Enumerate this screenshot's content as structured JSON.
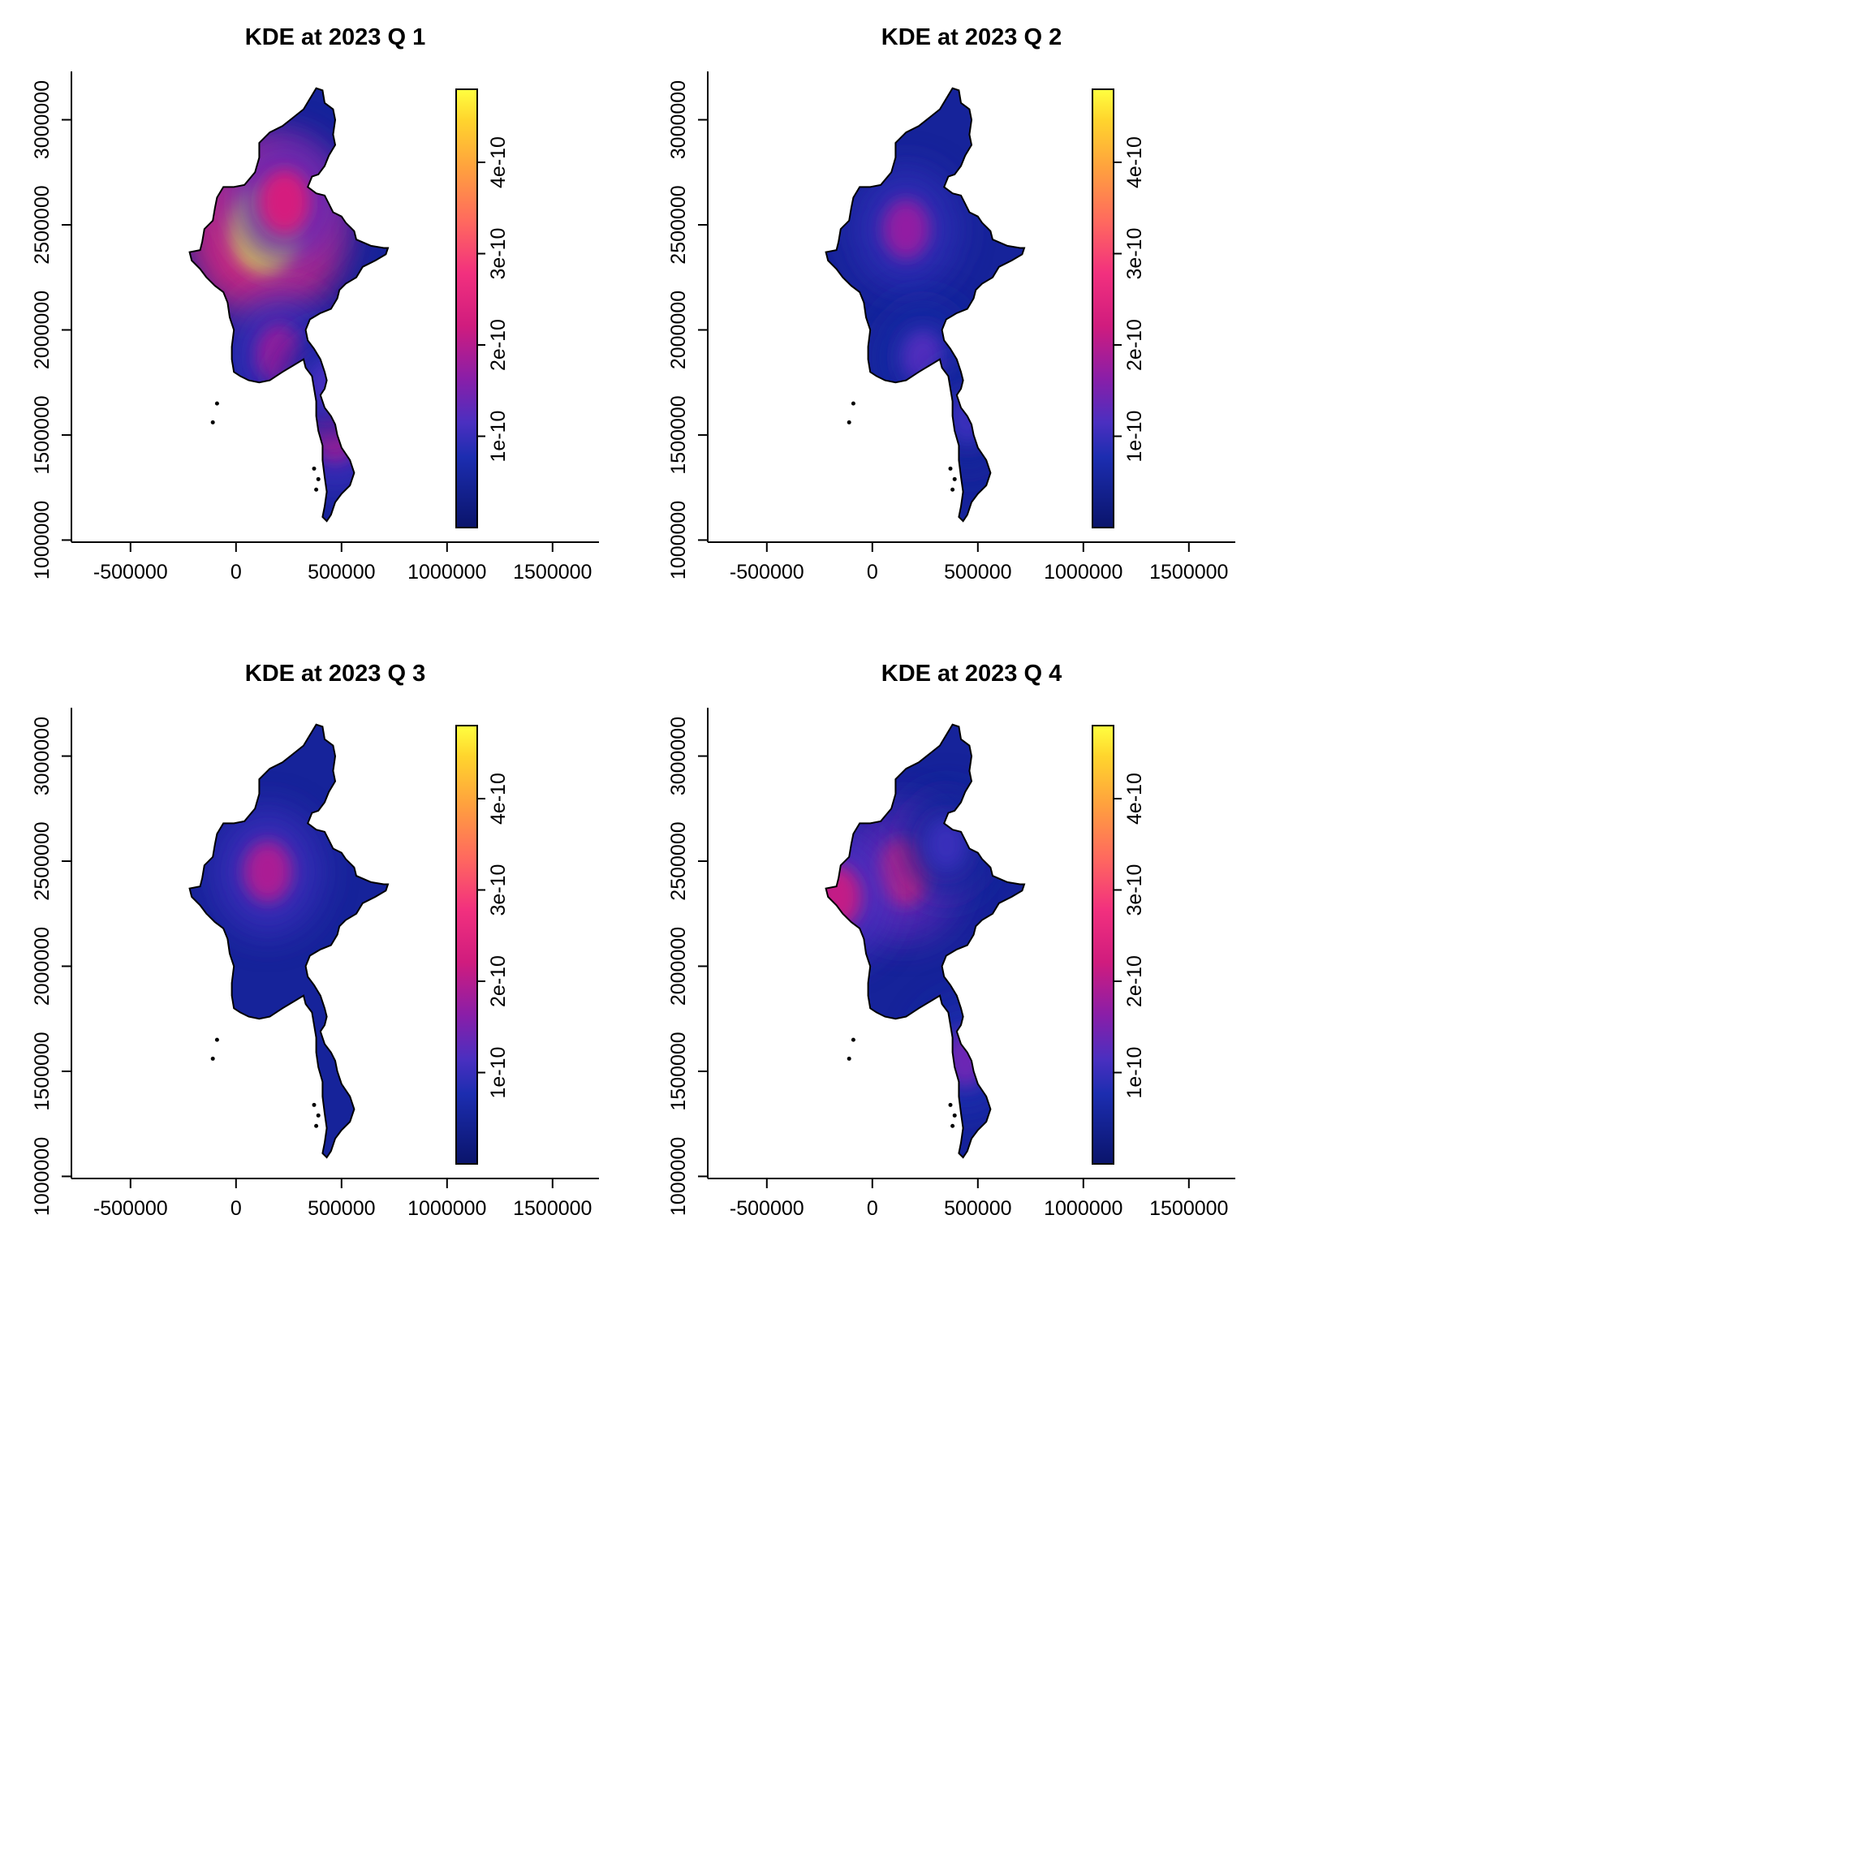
{
  "chart_data": [
    {
      "type": "heatmap",
      "title": "KDE at 2023 Q 1",
      "xlabel": "",
      "ylabel": "",
      "x_ticks": [
        "-500000",
        "0",
        "500000",
        "1000000",
        "1500000"
      ],
      "y_ticks": [
        "1000000",
        "1500000",
        "2000000",
        "2500000",
        "3000000"
      ],
      "xlim": [
        -780000,
        1720000
      ],
      "ylim": [
        990000,
        3230000
      ],
      "legend": {
        "placement": "right",
        "range": [
          0,
          4.8e-10
        ],
        "ticks": [
          "1e-10",
          "2e-10",
          "3e-10",
          "4e-10"
        ]
      },
      "hotspots": [
        {
          "x": 140000,
          "y": 2480000,
          "peak": 4.7e-10
        },
        {
          "x": 230000,
          "y": 2610000,
          "peak": 2.3e-10
        },
        {
          "x": 210000,
          "y": 1880000,
          "peak": 1.8e-10
        },
        {
          "x": 470000,
          "y": 1520000,
          "peak": 1.9e-10
        },
        {
          "x": 430000,
          "y": 1740000,
          "peak": 1.1e-10
        }
      ]
    },
    {
      "type": "heatmap",
      "title": "KDE at 2023 Q 2",
      "xlabel": "",
      "ylabel": "",
      "x_ticks": [
        "-500000",
        "0",
        "500000",
        "1000000",
        "1500000"
      ],
      "y_ticks": [
        "1000000",
        "1500000",
        "2000000",
        "2500000",
        "3000000"
      ],
      "xlim": [
        -780000,
        1720000
      ],
      "ylim": [
        990000,
        3230000
      ],
      "legend": {
        "placement": "right",
        "range": [
          0,
          4.8e-10
        ],
        "ticks": [
          "1e-10",
          "2e-10",
          "3e-10",
          "4e-10"
        ]
      },
      "hotspots": [
        {
          "x": 160000,
          "y": 2480000,
          "peak": 1.7e-10
        },
        {
          "x": 240000,
          "y": 1870000,
          "peak": 1.2e-10
        },
        {
          "x": 450000,
          "y": 1580000,
          "peak": 1e-10
        }
      ]
    },
    {
      "type": "heatmap",
      "title": "KDE at 2023 Q 3",
      "xlabel": "",
      "ylabel": "",
      "x_ticks": [
        "-500000",
        "0",
        "500000",
        "1000000",
        "1500000"
      ],
      "y_ticks": [
        "1000000",
        "1500000",
        "2000000",
        "2500000",
        "3000000"
      ],
      "xlim": [
        -780000,
        1720000
      ],
      "ylim": [
        990000,
        3230000
      ],
      "legend": {
        "placement": "right",
        "range": [
          0,
          4.8e-10
        ],
        "ticks": [
          "1e-10",
          "2e-10",
          "3e-10",
          "4e-10"
        ]
      },
      "hotspots": [
        {
          "x": 150000,
          "y": 2450000,
          "peak": 1.9e-10
        }
      ]
    },
    {
      "type": "heatmap",
      "title": "KDE at 2023 Q 4",
      "xlabel": "",
      "ylabel": "",
      "x_ticks": [
        "-500000",
        "0",
        "500000",
        "1000000",
        "1500000"
      ],
      "y_ticks": [
        "1000000",
        "1500000",
        "2000000",
        "2500000",
        "3000000"
      ],
      "xlim": [
        -780000,
        1720000
      ],
      "ylim": [
        990000,
        3230000
      ],
      "legend": {
        "placement": "right",
        "range": [
          0,
          4.8e-10
        ],
        "ticks": [
          "1e-10",
          "2e-10",
          "3e-10",
          "4e-10"
        ]
      },
      "hotspots": [
        {
          "x": 150000,
          "y": 2450000,
          "peak": 2.4e-10
        },
        {
          "x": 350000,
          "y": 2580000,
          "peak": 1e-10
        },
        {
          "x": -170000,
          "y": 2330000,
          "peak": 2.1e-10
        },
        {
          "x": 440000,
          "y": 1560000,
          "peak": 1.4e-10
        }
      ]
    }
  ]
}
